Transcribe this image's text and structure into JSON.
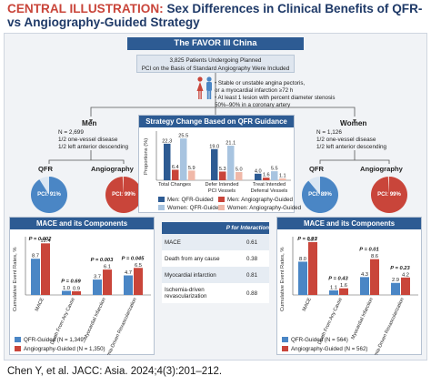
{
  "title": {
    "lead": "CENTRAL ILLUSTRATION:",
    "rest": "Sex Differences in Clinical Benefits of QFR- vs Angiography-Guided Strategy"
  },
  "trial": "The FAVOR III China",
  "patients": {
    "line1": "3,825 Patients Undergoing Planned",
    "line2": "PCI on the Basis of Standard Angiography Were Included"
  },
  "criteria": [
    "• Stable or unstable angina pectoris,",
    "   or a myocardial infarction ≥72 h",
    "• At least 1 lesion with percent diameter stenosis",
    "   50%–90% in a coronary artery"
  ],
  "men": {
    "label": "Men",
    "n": "N = 2,699",
    "l1": "1/2 one-vessel disease",
    "l2": "1/2 left anterior descending",
    "qfr_pci": "PCI: 91%",
    "qfr_pci_value": 91,
    "ang_pci": "PCI: 99%",
    "ang_pci_value": 99
  },
  "women": {
    "label": "Women",
    "n": "N = 1,126",
    "l1": "1/2 one-vessel disease",
    "l2": "1/2 left anterior descending",
    "qfr_pci": "PCI: 89%",
    "qfr_pci_value": 89,
    "ang_pci": "PCI: 99%",
    "ang_pci_value": 99
  },
  "labels": {
    "qfr": "QFR",
    "angiography": "Angiography"
  },
  "colors": {
    "navy": "#2d5b93",
    "qfr_blue": "#4a86c5",
    "ang_red": "#c9453a",
    "men_qfr": "#2d5b93",
    "women_qfr": "#a8c4e0",
    "men_ang": "#c9453a",
    "women_ang": "#f0b8a8"
  },
  "strategy": {
    "header": "Strategy Change Based on QFR Guidance",
    "ylabel": "Proportions (%)",
    "categories": [
      "Total Changes",
      "Defer Intended PCI Vessels",
      "Treat Intended Deferral Vessels"
    ],
    "legend": [
      "Men: QFR-Guided",
      "Men: Angiography-Guided",
      "Women: QFR-Guided",
      "Women: Angiography-Guided"
    ]
  },
  "ptable": {
    "header": "P for Interaction",
    "rows": [
      {
        "name": "MACE",
        "p": "0.61"
      },
      {
        "name": "Death from any cause",
        "p": "0.38"
      },
      {
        "name": "Myocardial infarction",
        "p": "0.81"
      },
      {
        "name": "Ischemia-driven revascularization",
        "p": "0.88"
      }
    ]
  },
  "mace": {
    "header": "MACE and its Components",
    "ylabel": "Cumulative Event Rates, %",
    "men_legend": [
      "QFR-Guided (N = 1,349)",
      "Angiography-Guided (N = 1,350)"
    ],
    "women_legend": [
      "QFR-Guided (N = 564)",
      "Angiography-Guided (N = 562)"
    ]
  },
  "chart_data": [
    {
      "type": "bar",
      "title": "Strategy Change Based on QFR Guidance",
      "ylabel": "Proportions (%)",
      "categories": [
        "Total Changes",
        "Defer Intended PCI Vessels",
        "Treat Intended Deferral Vessels"
      ],
      "series": [
        {
          "name": "Men: QFR-Guided",
          "values": [
            22.3,
            19.0,
            4.0
          ]
        },
        {
          "name": "Men: Angiography-Guided",
          "values": [
            6.4,
            5.3,
            1.6
          ]
        },
        {
          "name": "Women: QFR-Guided",
          "values": [
            25.5,
            21.1,
            5.5
          ]
        },
        {
          "name": "Women: Angiography-Guided",
          "values": [
            5.9,
            5.0,
            1.1
          ]
        }
      ],
      "ylim": [
        0,
        30
      ]
    },
    {
      "type": "bar",
      "title": "MACE and its Components",
      "ylabel": "Cumulative Event Rates, %",
      "categories": [
        "MACE",
        "Death From Any Cause",
        "Myocardial Infarction",
        "Ischemia-Driven Revascularization"
      ],
      "series": [
        {
          "name": "QFR-Guided (N = 1,349)",
          "values": [
            8.7,
            1.0,
            3.7,
            4.7
          ]
        },
        {
          "name": "Angiography-Guided (N = 1,350)",
          "values": [
            12.4,
            0.9,
            6.1,
            6.5
          ]
        }
      ],
      "p_values": [
        "P = 0.002",
        "P = 0.69",
        "P = 0.003",
        "P = 0.045"
      ],
      "ylim": [
        0,
        14
      ]
    },
    {
      "type": "bar",
      "title": "MACE and its Components",
      "ylabel": "Cumulative Event Rates, %",
      "categories": [
        "MACE",
        "Death From Any Cause",
        "Myocardial Infarction",
        "Ischemia-Driven Revascularization"
      ],
      "series": [
        {
          "name": "QFR-Guided (N = 564)",
          "values": [
            8.0,
            1.1,
            4.3,
            2.9
          ]
        },
        {
          "name": "Angiography-Guided (N = 562)",
          "values": [
            12.7,
            1.6,
            8.6,
            4.2
          ]
        }
      ],
      "p_values": [
        "P = 0.01",
        "P = 0.43",
        "P = 0.01",
        "P = 0.23"
      ],
      "ylim": [
        0,
        14
      ]
    }
  ],
  "citation": "Chen Y, et al. JACC: Asia. 2024;4(3):201–212."
}
